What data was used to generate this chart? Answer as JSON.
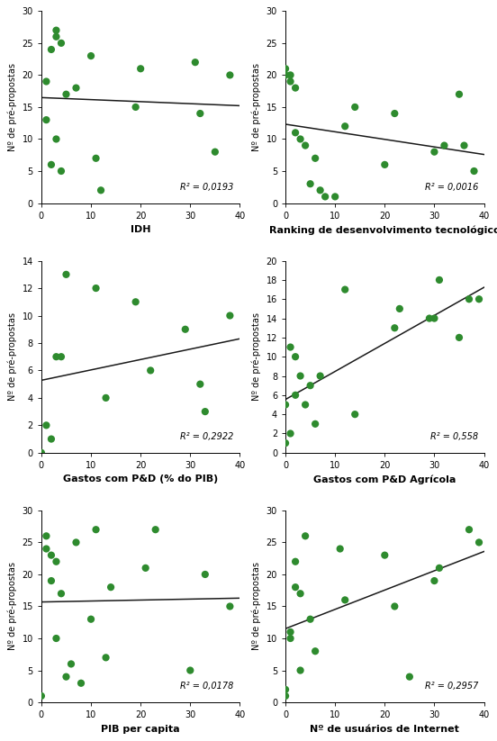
{
  "plots": [
    {
      "xlabel": "IDH",
      "ylabel": "Nº de pré-propostas",
      "r2_label": "R² = 0,0193",
      "xlim": [
        0,
        40
      ],
      "ylim": [
        0,
        30
      ],
      "xticks": [
        0,
        10,
        20,
        30,
        40
      ],
      "yticks": [
        0,
        5,
        10,
        15,
        20,
        25,
        30
      ],
      "x": [
        1,
        1,
        2,
        2,
        3,
        3,
        3,
        4,
        4,
        5,
        7,
        10,
        11,
        12,
        19,
        20,
        31,
        32,
        35,
        38
      ],
      "y": [
        13,
        19,
        24,
        6,
        27,
        26,
        10,
        25,
        5,
        17,
        18,
        23,
        7,
        2,
        15,
        21,
        22,
        14,
        8,
        20
      ]
    },
    {
      "xlabel": "Ranking de desenvolvimento tecnológico",
      "ylabel": "Nº de pré-propostas",
      "r2_label": "R² = 0,0016",
      "xlim": [
        0,
        40
      ],
      "ylim": [
        0,
        30
      ],
      "xticks": [
        0,
        10,
        20,
        30,
        40
      ],
      "yticks": [
        0,
        5,
        10,
        15,
        20,
        25,
        30
      ],
      "x": [
        0,
        0,
        1,
        1,
        2,
        2,
        3,
        4,
        5,
        6,
        7,
        8,
        10,
        12,
        14,
        20,
        22,
        30,
        32,
        35,
        36,
        38
      ],
      "y": [
        21,
        20,
        20,
        19,
        18,
        11,
        10,
        9,
        3,
        7,
        2,
        1,
        1,
        12,
        15,
        6,
        14,
        8,
        9,
        17,
        9,
        5
      ]
    },
    {
      "xlabel": "Gastos com P&D (% do PIB)",
      "ylabel": "Nº de pré-propostas",
      "r2_label": "R² = 0,2922",
      "xlim": [
        0,
        40
      ],
      "ylim": [
        0,
        14
      ],
      "xticks": [
        0,
        10,
        20,
        30,
        40
      ],
      "yticks": [
        0,
        2,
        4,
        6,
        8,
        10,
        12,
        14
      ],
      "x": [
        0,
        1,
        2,
        3,
        4,
        5,
        11,
        13,
        19,
        22,
        29,
        32,
        33,
        38
      ],
      "y": [
        0,
        2,
        1,
        7,
        7,
        13,
        12,
        4,
        11,
        6,
        9,
        5,
        3,
        10
      ]
    },
    {
      "xlabel": "Gastos com P&D Agrícola",
      "ylabel": "Nº de pré-propostas",
      "r2_label": "R² = 0,558",
      "xlim": [
        0,
        40
      ],
      "ylim": [
        0,
        20
      ],
      "xticks": [
        0,
        10,
        20,
        30,
        40
      ],
      "yticks": [
        0,
        2,
        4,
        6,
        8,
        10,
        12,
        14,
        16,
        18,
        20
      ],
      "x": [
        0,
        0,
        1,
        1,
        2,
        2,
        3,
        4,
        5,
        6,
        7,
        12,
        14,
        22,
        23,
        29,
        30,
        31,
        35,
        37,
        39
      ],
      "y": [
        5,
        1,
        11,
        2,
        10,
        6,
        8,
        5,
        7,
        3,
        8,
        17,
        4,
        13,
        15,
        14,
        14,
        18,
        12,
        16,
        16
      ]
    },
    {
      "xlabel": "PIB per capita",
      "ylabel": "Nº de pré-propostas",
      "r2_label": "R² = 0,0178",
      "xlim": [
        0,
        40
      ],
      "ylim": [
        0,
        30
      ],
      "xticks": [
        0,
        10,
        20,
        30,
        40
      ],
      "yticks": [
        0,
        5,
        10,
        15,
        20,
        25,
        30
      ],
      "x": [
        0,
        1,
        1,
        2,
        2,
        3,
        3,
        4,
        5,
        6,
        7,
        8,
        10,
        11,
        13,
        14,
        21,
        23,
        30,
        33,
        38
      ],
      "y": [
        1,
        26,
        24,
        19,
        23,
        22,
        10,
        17,
        4,
        6,
        25,
        3,
        13,
        27,
        7,
        18,
        21,
        27,
        5,
        20,
        15
      ]
    },
    {
      "xlabel": "Nº de usuários de Internet",
      "ylabel": "Nº de pré-propostas",
      "r2_label": "R² = 0,2957",
      "xlim": [
        0,
        40
      ],
      "ylim": [
        0,
        30
      ],
      "xticks": [
        0,
        10,
        20,
        30,
        40
      ],
      "yticks": [
        0,
        5,
        10,
        15,
        20,
        25,
        30
      ],
      "x": [
        0,
        0,
        1,
        1,
        2,
        2,
        3,
        3,
        4,
        5,
        6,
        11,
        12,
        20,
        22,
        25,
        30,
        31,
        37,
        39
      ],
      "y": [
        1,
        2,
        11,
        10,
        18,
        22,
        17,
        5,
        26,
        13,
        8,
        24,
        16,
        23,
        15,
        4,
        19,
        21,
        27,
        25
      ]
    }
  ],
  "dot_color": "#2e8b2e",
  "line_color": "#1a1a1a",
  "dot_size": 35,
  "font_size_label": 8,
  "font_size_tick": 7,
  "font_size_r2": 7,
  "ylabel_fontsize": 7
}
